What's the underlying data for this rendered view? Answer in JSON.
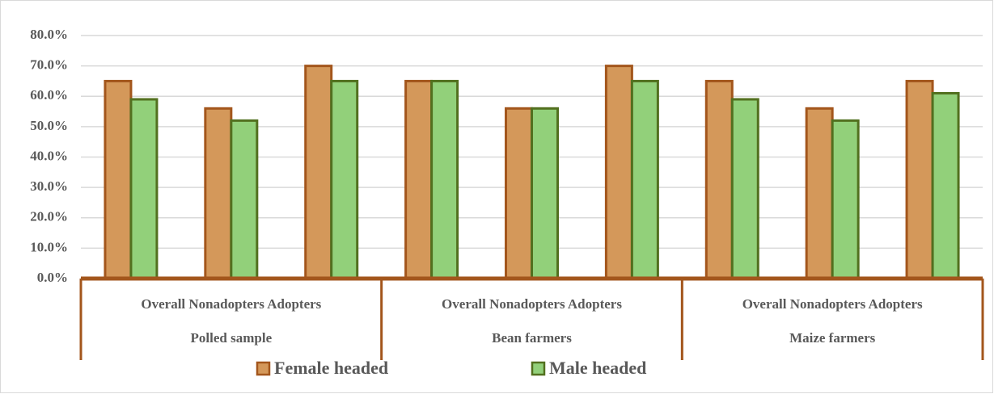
{
  "chart_data": {
    "type": "bar",
    "categories": [
      "Overall",
      "Nonadopters",
      "Adopters",
      "Overall",
      "Nonadopters",
      "Adopters",
      "Overall",
      "Nonadopters",
      "Adopters"
    ],
    "groups": [
      "Polled sample",
      "Bean farmers",
      "Maize farmers"
    ],
    "series": [
      {
        "name": "Female headed",
        "color": "#d4985a",
        "edge": "#a3561c",
        "values": [
          65,
          56,
          70,
          65,
          56,
          70,
          65,
          56,
          65
        ]
      },
      {
        "name": "Male headed",
        "color": "#92d07a",
        "edge": "#52701f",
        "values": [
          59,
          52,
          65,
          65,
          56,
          65,
          59,
          52,
          61
        ]
      }
    ],
    "ylim": [
      0,
      80
    ],
    "yticks": [
      {
        "value": 0,
        "label": "0.0%"
      },
      {
        "value": 10,
        "label": "10.0%"
      },
      {
        "value": 20,
        "label": "20.0%"
      },
      {
        "value": 30,
        "label": "30.0%"
      },
      {
        "value": 40,
        "label": "40.0%"
      },
      {
        "value": 50,
        "label": "50.0%"
      },
      {
        "value": 60,
        "label": "60.0%"
      },
      {
        "value": 70,
        "label": "70.0%"
      },
      {
        "value": 80,
        "label": "80.0%"
      }
    ],
    "grid": true,
    "legend": "bottom"
  }
}
